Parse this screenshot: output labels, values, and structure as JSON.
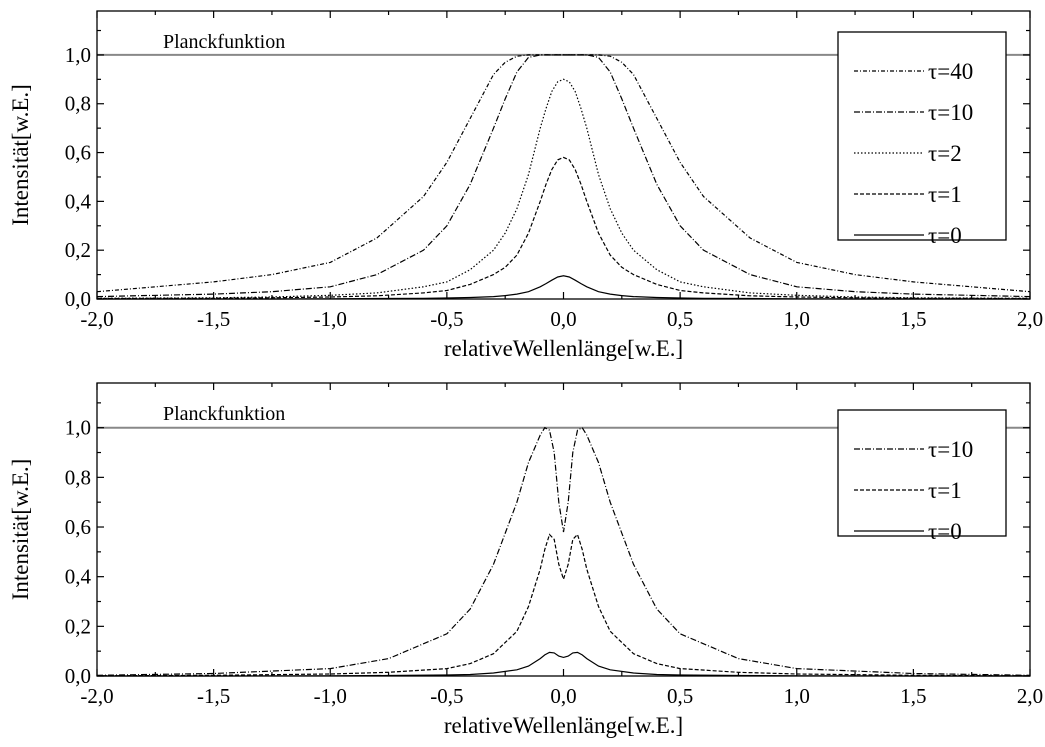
{
  "chart_data": [
    {
      "type": "line",
      "xlabel": "relativeWellenlänge[w.E.]",
      "ylabel": "Intensität[w.E.]",
      "xlim": [
        -2.0,
        2.0
      ],
      "ylim": [
        0.0,
        1.18
      ],
      "x_ticks": [
        "-2,0",
        "-1,5",
        "-1,0",
        "-0,5",
        "0,0",
        "0,5",
        "1,0",
        "1,5",
        "2,0"
      ],
      "y_ticks": [
        "0,0",
        "0,2",
        "0,4",
        "0,6",
        "0,8",
        "1,0"
      ],
      "reference_line": {
        "label": "Planckfunktion",
        "y": 1.0
      },
      "legend": {
        "position": "top-right",
        "entries": [
          "τ=40",
          "τ=10",
          "τ=2",
          "τ=1",
          "τ=0"
        ]
      },
      "x": [
        -2.0,
        -1.5,
        -1.25,
        -1.0,
        -0.8,
        -0.6,
        -0.5,
        -0.4,
        -0.3,
        -0.25,
        -0.2,
        -0.15,
        -0.1,
        -0.075,
        -0.05,
        -0.025,
        0.0,
        0.025,
        0.05,
        0.075,
        0.1,
        0.15,
        0.2,
        0.25,
        0.3,
        0.4,
        0.5,
        0.6,
        0.8,
        1.0,
        1.25,
        1.5,
        2.0
      ],
      "series": [
        {
          "name": "τ=40",
          "values": [
            0.03,
            0.07,
            0.1,
            0.15,
            0.25,
            0.42,
            0.56,
            0.74,
            0.92,
            0.97,
            0.995,
            1.0,
            1.0,
            1.0,
            1.0,
            1.0,
            1.0,
            1.0,
            1.0,
            1.0,
            1.0,
            1.0,
            0.995,
            0.97,
            0.92,
            0.74,
            0.56,
            0.42,
            0.25,
            0.15,
            0.1,
            0.07,
            0.03
          ]
        },
        {
          "name": "τ=10",
          "values": [
            0.01,
            0.02,
            0.03,
            0.05,
            0.1,
            0.2,
            0.3,
            0.47,
            0.7,
            0.82,
            0.93,
            0.99,
            1.0,
            1.0,
            1.0,
            1.0,
            1.0,
            1.0,
            1.0,
            1.0,
            1.0,
            0.99,
            0.93,
            0.82,
            0.7,
            0.47,
            0.3,
            0.2,
            0.1,
            0.05,
            0.03,
            0.02,
            0.01
          ]
        },
        {
          "name": "τ=2",
          "values": [
            0.003,
            0.005,
            0.008,
            0.015,
            0.025,
            0.05,
            0.07,
            0.12,
            0.2,
            0.27,
            0.37,
            0.51,
            0.7,
            0.78,
            0.85,
            0.89,
            0.9,
            0.89,
            0.85,
            0.78,
            0.7,
            0.51,
            0.37,
            0.27,
            0.2,
            0.12,
            0.07,
            0.05,
            0.025,
            0.015,
            0.008,
            0.005,
            0.003
          ]
        },
        {
          "name": "τ=1",
          "values": [
            0.002,
            0.003,
            0.005,
            0.008,
            0.013,
            0.025,
            0.035,
            0.06,
            0.1,
            0.13,
            0.18,
            0.27,
            0.4,
            0.47,
            0.53,
            0.57,
            0.58,
            0.57,
            0.53,
            0.47,
            0.4,
            0.27,
            0.18,
            0.13,
            0.1,
            0.06,
            0.035,
            0.025,
            0.013,
            0.008,
            0.005,
            0.003,
            0.002
          ]
        },
        {
          "name": "τ=0",
          "values": [
            0.0,
            0.0,
            0.0,
            0.001,
            0.002,
            0.003,
            0.004,
            0.006,
            0.01,
            0.014,
            0.02,
            0.03,
            0.05,
            0.063,
            0.077,
            0.09,
            0.095,
            0.09,
            0.077,
            0.063,
            0.05,
            0.03,
            0.02,
            0.014,
            0.01,
            0.006,
            0.004,
            0.003,
            0.002,
            0.001,
            0.0,
            0.0,
            0.0
          ]
        }
      ]
    },
    {
      "type": "line",
      "xlabel": "relativeWellenlänge[w.E.]",
      "ylabel": "Intensität[w.E.]",
      "xlim": [
        -2.0,
        2.0
      ],
      "ylim": [
        0.0,
        1.18
      ],
      "x_ticks": [
        "-2,0",
        "-1,5",
        "-1,0",
        "-0,5",
        "0,0",
        "0,5",
        "1,0",
        "1,5",
        "2,0"
      ],
      "y_ticks": [
        "0,0",
        "0,2",
        "0,4",
        "0,6",
        "0,8",
        "1,0"
      ],
      "reference_line": {
        "label": "Planckfunktion",
        "y": 1.0
      },
      "legend": {
        "position": "top-right",
        "entries": [
          "τ=10",
          "τ=1",
          "τ=0"
        ]
      },
      "x": [
        -2.0,
        -1.5,
        -1.0,
        -0.75,
        -0.5,
        -0.4,
        -0.3,
        -0.2,
        -0.15,
        -0.1,
        -0.08,
        -0.06,
        -0.04,
        -0.02,
        0.0,
        0.02,
        0.04,
        0.06,
        0.08,
        0.1,
        0.15,
        0.2,
        0.3,
        0.4,
        0.5,
        0.75,
        1.0,
        1.5,
        2.0
      ],
      "series": [
        {
          "name": "τ=10",
          "values": [
            0.003,
            0.01,
            0.03,
            0.07,
            0.17,
            0.27,
            0.45,
            0.7,
            0.86,
            0.97,
            1.0,
            0.99,
            0.9,
            0.7,
            0.58,
            0.7,
            0.9,
            0.99,
            1.0,
            0.97,
            0.86,
            0.7,
            0.45,
            0.27,
            0.17,
            0.07,
            0.03,
            0.01,
            0.003
          ]
        },
        {
          "name": "τ=1",
          "values": [
            0.001,
            0.003,
            0.008,
            0.015,
            0.03,
            0.05,
            0.09,
            0.18,
            0.28,
            0.43,
            0.51,
            0.57,
            0.55,
            0.45,
            0.39,
            0.45,
            0.55,
            0.57,
            0.51,
            0.43,
            0.28,
            0.18,
            0.09,
            0.05,
            0.03,
            0.015,
            0.008,
            0.003,
            0.001
          ]
        },
        {
          "name": "τ=0",
          "values": [
            0.0,
            0.0,
            0.001,
            0.002,
            0.004,
            0.006,
            0.012,
            0.025,
            0.04,
            0.07,
            0.085,
            0.095,
            0.093,
            0.08,
            0.075,
            0.08,
            0.093,
            0.095,
            0.085,
            0.07,
            0.04,
            0.025,
            0.012,
            0.006,
            0.004,
            0.002,
            0.001,
            0.0,
            0.0
          ]
        }
      ]
    }
  ]
}
